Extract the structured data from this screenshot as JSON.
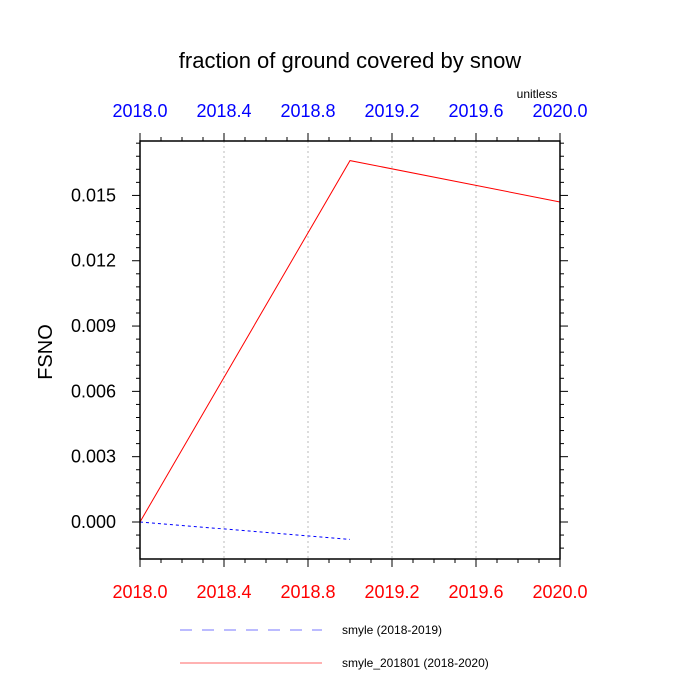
{
  "chart_data": {
    "type": "line",
    "title": "fraction of ground covered by snow",
    "units": "unitless",
    "ylabel": "FSNO",
    "xlabel": "",
    "xlim": [
      2018.0,
      2020.0
    ],
    "ylim": [
      -0.0017,
      0.0175
    ],
    "x_ticks": [
      2018.0,
      2018.4,
      2018.8,
      2019.2,
      2019.6,
      2020.0
    ],
    "x_tick_labels": [
      "2018.0",
      "2018.4",
      "2018.8",
      "2019.2",
      "2019.6",
      "2020.0"
    ],
    "y_ticks": [
      0.0,
      0.003,
      0.006,
      0.009,
      0.012,
      0.015
    ],
    "y_tick_labels": [
      "0.000",
      "0.003",
      "0.006",
      "0.009",
      "0.012",
      "0.015"
    ],
    "grid": "vertical dotted at x ticks",
    "legend_position": "bottom",
    "top_axis_color": "#0000ff",
    "bottom_axis_color": "#ff0000",
    "series": [
      {
        "name": "smyle (2018-2019)",
        "color": "#0000ff",
        "dash": "dashed",
        "x": [
          2018.0,
          2019.0
        ],
        "y": [
          0.0,
          -0.0008
        ]
      },
      {
        "name": "smyle_201801 (2018-2020)",
        "color": "#ff0000",
        "dash": "solid",
        "x": [
          2018.0,
          2019.0,
          2020.0
        ],
        "y": [
          0.0,
          0.0166,
          0.0147
        ]
      }
    ]
  }
}
